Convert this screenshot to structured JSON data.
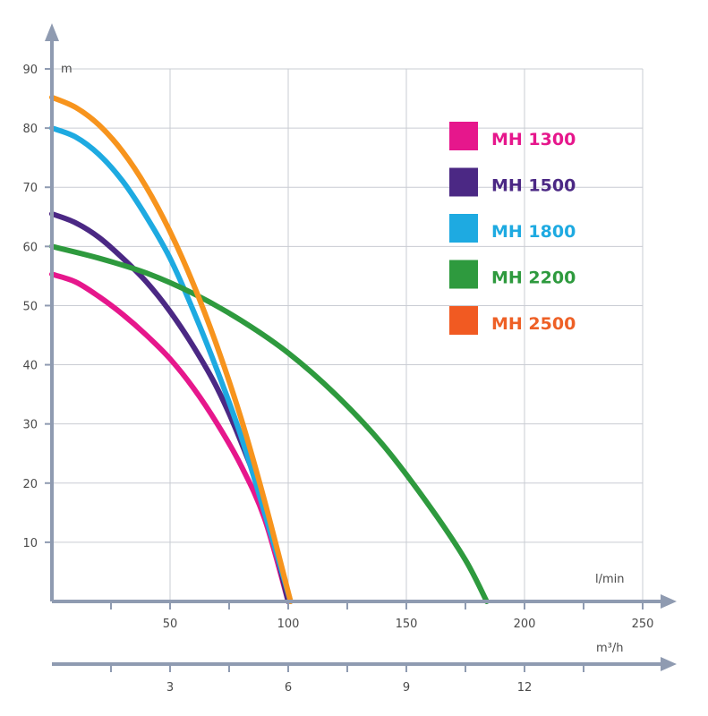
{
  "chart_data": {
    "type": "line",
    "title": "",
    "y_unit": "m",
    "x_unit": "l/min",
    "x2_unit": "m³/h",
    "xlim": [
      0,
      250
    ],
    "ylim": [
      0,
      90
    ],
    "x_ticks": [
      "50",
      "100",
      "150",
      "200",
      "250"
    ],
    "x_tick_values": [
      50,
      100,
      150,
      200,
      250
    ],
    "y_ticks": [
      "10",
      "20",
      "30",
      "40",
      "50",
      "60",
      "70",
      "80",
      "90"
    ],
    "y_tick_values": [
      10,
      20,
      30,
      40,
      50,
      60,
      70,
      80,
      90
    ],
    "x2_ticks": [
      "3",
      "6",
      "9",
      "12"
    ],
    "x2_tick_values": [
      3,
      6,
      9,
      12
    ],
    "x2_per_x": 0.06,
    "grid": true,
    "legend_position": "right",
    "series": [
      {
        "name": "MH 1300",
        "color": "#e6178c",
        "points": [
          [
            0,
            55.3
          ],
          [
            10,
            54
          ],
          [
            20,
            51.5
          ],
          [
            30,
            48.5
          ],
          [
            40,
            45
          ],
          [
            50,
            41
          ],
          [
            60,
            36
          ],
          [
            70,
            30
          ],
          [
            80,
            23
          ],
          [
            90,
            14
          ],
          [
            100,
            0
          ]
        ]
      },
      {
        "name": "MH 1500",
        "color": "#4b2884",
        "points": [
          [
            0,
            65.5
          ],
          [
            10,
            64
          ],
          [
            20,
            61.5
          ],
          [
            30,
            58
          ],
          [
            40,
            54
          ],
          [
            50,
            49
          ],
          [
            60,
            43
          ],
          [
            70,
            36
          ],
          [
            80,
            27
          ],
          [
            90,
            16
          ],
          [
            100,
            0
          ]
        ]
      },
      {
        "name": "MH 1800",
        "color": "#1eaae1",
        "points": [
          [
            0,
            80
          ],
          [
            10,
            78.5
          ],
          [
            20,
            75.5
          ],
          [
            30,
            71
          ],
          [
            40,
            65
          ],
          [
            50,
            58
          ],
          [
            60,
            49
          ],
          [
            70,
            39
          ],
          [
            80,
            28
          ],
          [
            90,
            15
          ],
          [
            101,
            0
          ]
        ]
      },
      {
        "name": "MH 2200",
        "color": "#2e9a3e",
        "points": [
          [
            0,
            60
          ],
          [
            20,
            58
          ],
          [
            40,
            55.5
          ],
          [
            60,
            52
          ],
          [
            80,
            47.5
          ],
          [
            100,
            42
          ],
          [
            120,
            35
          ],
          [
            140,
            26.5
          ],
          [
            160,
            16
          ],
          [
            175,
            7
          ],
          [
            184,
            0
          ]
        ]
      },
      {
        "name": "MH 2500",
        "color": "#f7941d",
        "points": [
          [
            0,
            85.2
          ],
          [
            10,
            83.5
          ],
          [
            20,
            80.5
          ],
          [
            30,
            76
          ],
          [
            40,
            70
          ],
          [
            50,
            62.5
          ],
          [
            60,
            53.5
          ],
          [
            70,
            43
          ],
          [
            80,
            31
          ],
          [
            90,
            17
          ],
          [
            101,
            0
          ]
        ]
      }
    ],
    "legend_label_colors": [
      "#e6178c",
      "#4b2884",
      "#1eaae1",
      "#2e9a3e",
      "#ee6026"
    ],
    "legend_swatch_colors": [
      "#e6178c",
      "#4b2884",
      "#1eaae1",
      "#2e9a3e",
      "#f15a22"
    ]
  }
}
